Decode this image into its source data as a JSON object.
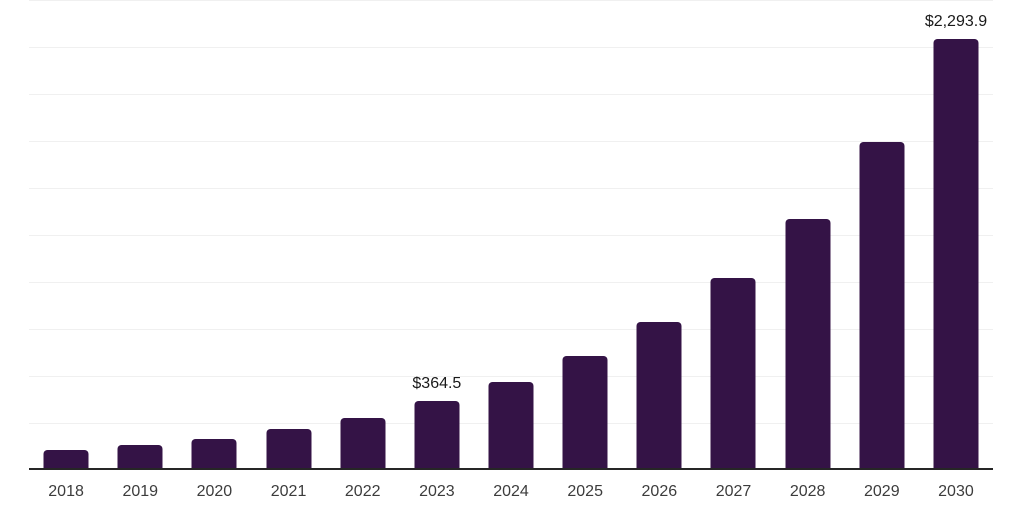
{
  "chart_data": {
    "type": "bar",
    "categories": [
      "2018",
      "2019",
      "2020",
      "2021",
      "2022",
      "2023",
      "2024",
      "2025",
      "2026",
      "2027",
      "2028",
      "2029",
      "2030"
    ],
    "values": [
      109,
      133,
      165,
      218,
      277,
      364.5,
      468,
      606,
      787,
      1021,
      1335,
      1745,
      2293.9
    ],
    "value_labels": {
      "2023": "$364.5",
      "2030": "$2,293.9"
    },
    "title": "",
    "xlabel": "",
    "ylabel": "",
    "ylim": [
      0,
      2500
    ],
    "gridline_step": 250,
    "grid": true,
    "legend": false,
    "y_axis_labels_visible": false
  },
  "colors": {
    "bar": "#341346",
    "gridline": "#f0f0f0",
    "axis": "#262626",
    "tick_label": "#3c3c3c",
    "value_label": "#1a1a1a",
    "background": "#ffffff"
  }
}
